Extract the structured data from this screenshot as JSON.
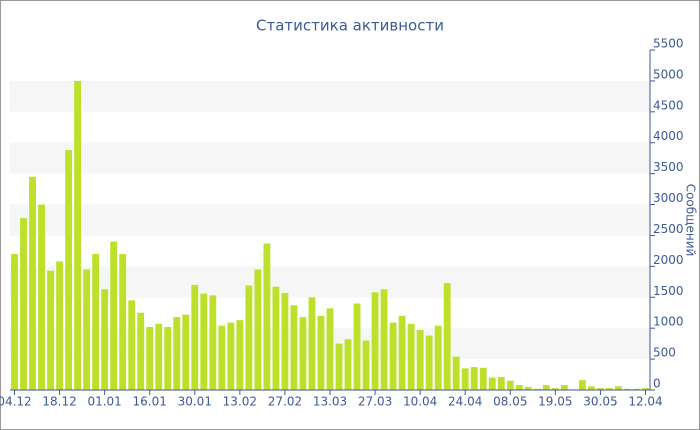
{
  "chart_data": {
    "type": "bar",
    "title": "Статистика активности",
    "y_label": "Сообщений",
    "categories": [
      "04.12",
      null,
      null,
      null,
      null,
      "18.12",
      null,
      null,
      null,
      null,
      "01.01",
      null,
      null,
      null,
      null,
      "16.01",
      null,
      null,
      null,
      null,
      "30.01",
      null,
      null,
      null,
      null,
      "13.02",
      null,
      null,
      null,
      null,
      "27.02",
      null,
      null,
      null,
      null,
      "13.03",
      null,
      null,
      null,
      null,
      "27.03",
      null,
      null,
      null,
      null,
      "10.04",
      null,
      null,
      null,
      null,
      "24.04",
      null,
      null,
      null,
      null,
      "08.05",
      null,
      null,
      null,
      null,
      "19.05",
      null,
      null,
      null,
      null,
      "30.05",
      null,
      null,
      null,
      null,
      "12.04"
    ],
    "values": [
      2200,
      2780,
      3450,
      3000,
      1930,
      2080,
      3880,
      5000,
      1950,
      2200,
      1630,
      2400,
      2200,
      1450,
      1250,
      1020,
      1070,
      1020,
      1180,
      1220,
      1700,
      1560,
      1530,
      1040,
      1090,
      1130,
      1690,
      1950,
      2370,
      1670,
      1570,
      1370,
      1180,
      1500,
      1200,
      1320,
      750,
      820,
      1400,
      800,
      1580,
      1630,
      1090,
      1200,
      1070,
      970,
      880,
      1040,
      1730,
      540,
      350,
      370,
      360,
      200,
      210,
      150,
      80,
      50,
      20,
      80,
      30,
      80,
      10,
      160,
      60,
      30,
      30,
      60,
      20,
      20,
      30
    ],
    "color": "#bde12b",
    "ylim": [
      0,
      5500
    ],
    "yticks": [
      0,
      500,
      1000,
      1500,
      2000,
      2500,
      3000,
      3500,
      4000,
      4500,
      5000,
      5500
    ],
    "grid": true
  }
}
